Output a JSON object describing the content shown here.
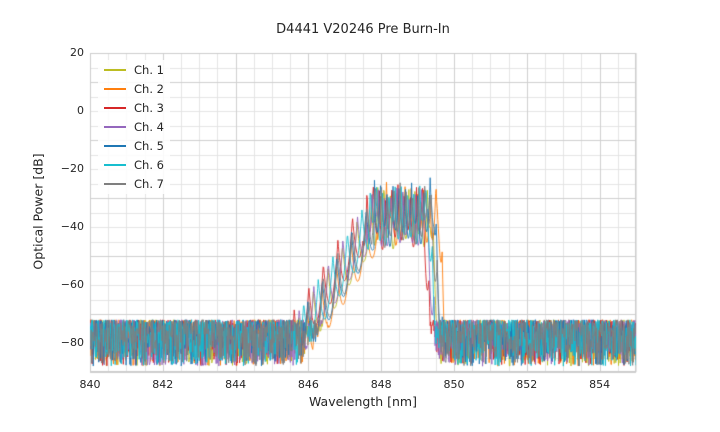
{
  "chart_data": {
    "type": "line",
    "title": "D4441 V20246 Pre Burn-In",
    "xlabel": "Wavelength [nm]",
    "ylabel": "Optical Power [dB]",
    "xlim": [
      840,
      855
    ],
    "ylim": [
      -90,
      20
    ],
    "xticks": [
      {
        "v": 840,
        "label": "840"
      },
      {
        "v": 842,
        "label": "842"
      },
      {
        "v": 844,
        "label": "844"
      },
      {
        "v": 846,
        "label": "846"
      },
      {
        "v": 848,
        "label": "848"
      },
      {
        "v": 850,
        "label": "850"
      },
      {
        "v": 852,
        "label": "852"
      },
      {
        "v": 854,
        "label": "854"
      }
    ],
    "yticks": [
      {
        "v": 20,
        "label": "20"
      },
      {
        "v": 0,
        "label": "0"
      },
      {
        "v": -20,
        "label": "−20"
      },
      {
        "v": -40,
        "label": "−40"
      },
      {
        "v": -60,
        "label": "−60"
      },
      {
        "v": -80,
        "label": "−80"
      }
    ],
    "grid": {
      "major_x_step": 2,
      "major_y_step": 20,
      "minor_x_step": 0.5,
      "minor_y_step": 5,
      "minor_color": "#e4e4e4",
      "major_color": "#cfcfcf",
      "border_color": "#cccccc"
    },
    "legend_position": "upper-left",
    "noise_floor_db": -80,
    "noise_top_db": -72,
    "noise_bottom_db": -88,
    "signal_band_nm": [
      845.8,
      849.7
    ],
    "peak_region_db": [
      -45,
      -22
    ],
    "series": [
      {
        "name": "Ch. 1",
        "color": "#bcbd22",
        "center_nm": 848.55,
        "peak_db": -23.5,
        "seed": 1
      },
      {
        "name": "Ch. 2",
        "color": "#ff7f0e",
        "center_nm": 848.75,
        "peak_db": -23.0,
        "seed": 2
      },
      {
        "name": "Ch. 3",
        "color": "#d62728",
        "center_nm": 848.35,
        "peak_db": -23.5,
        "seed": 3
      },
      {
        "name": "Ch. 4",
        "color": "#9467bd",
        "center_nm": 848.45,
        "peak_db": -24.0,
        "seed": 4
      },
      {
        "name": "Ch. 5",
        "color": "#1f77b4",
        "center_nm": 848.65,
        "peak_db": -22.5,
        "seed": 5
      },
      {
        "name": "Ch. 6",
        "color": "#17becf",
        "center_nm": 848.5,
        "peak_db": -23.0,
        "seed": 6
      },
      {
        "name": "Ch. 7",
        "color": "#7f7f7f",
        "center_nm": 848.6,
        "peak_db": -23.0,
        "seed": 7
      }
    ]
  }
}
